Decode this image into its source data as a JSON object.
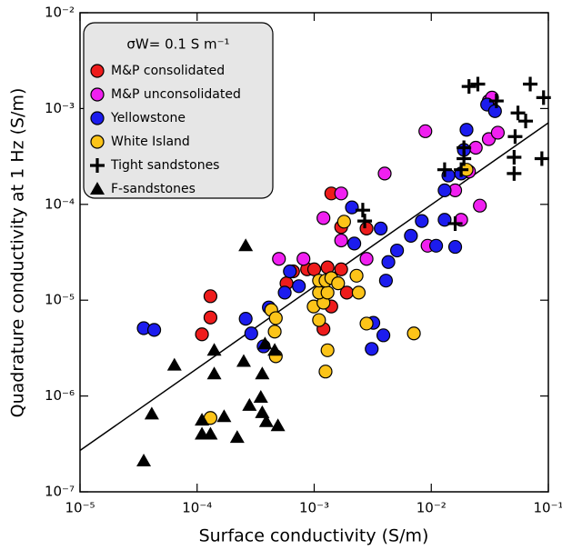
{
  "chart_data": {
    "type": "scatter",
    "xlabel": "Surface conductivity (S/m)",
    "ylabel": "Quadrature conductivity at 1 Hz (S/m)",
    "xscale": "log",
    "yscale": "log",
    "xlim": [
      1e-05,
      0.1
    ],
    "ylim": [
      1e-07,
      0.01
    ],
    "xticks": [
      {
        "value": 1e-05,
        "label": "10⁻⁵"
      },
      {
        "value": 0.0001,
        "label": "10⁻⁴"
      },
      {
        "value": 0.001,
        "label": "10⁻³"
      },
      {
        "value": 0.01,
        "label": "10⁻²"
      },
      {
        "value": 0.1,
        "label": "10⁻¹"
      }
    ],
    "yticks": [
      {
        "value": 1e-07,
        "label": "10⁻⁷"
      },
      {
        "value": 1e-06,
        "label": "10⁻⁶"
      },
      {
        "value": 1e-05,
        "label": "10⁻⁵"
      },
      {
        "value": 0.0001,
        "label": "10⁻⁴"
      },
      {
        "value": 0.001,
        "label": "10⁻³"
      },
      {
        "value": 0.01,
        "label": "10⁻²"
      }
    ],
    "legend_title": "σW= 0.1 S m⁻¹",
    "legend_position": "upper left",
    "fit_line": {
      "color": "#000000",
      "x": [
        1e-05,
        0.1
      ],
      "y": [
        2.7e-07,
        0.00071
      ]
    },
    "series": [
      {
        "name": "M&P consolidated",
        "color": "#ee1c1c",
        "marker": "circle",
        "x": [
          0.00013,
          0.00013,
          0.00011,
          0.00066,
          0.00058,
          0.00087,
          0.001,
          0.0013,
          0.0017,
          0.0014,
          0.0017,
          0.0019,
          0.0014,
          0.0012,
          0.0028
        ],
        "values": [
          1.1e-05,
          6.6e-06,
          4.4e-06,
          2e-05,
          1.5e-05,
          2.1e-05,
          2.1e-05,
          2.2e-05,
          2.1e-05,
          0.00013,
          5.8e-05,
          1.2e-05,
          8.6e-06,
          5e-06,
          5.6e-05
        ]
      },
      {
        "name": "M&P unconsolidated",
        "color": "#f020f0",
        "marker": "circle",
        "x": [
          0.0005,
          0.00081,
          0.0012,
          0.0017,
          0.0017,
          0.0028,
          0.004,
          0.0089,
          0.0093,
          0.016,
          0.018,
          0.026,
          0.021,
          0.024,
          0.031,
          0.037,
          0.031,
          0.033
        ],
        "values": [
          2.7e-05,
          2.7e-05,
          7.2e-05,
          0.00013,
          4.2e-05,
          2.7e-05,
          0.00021,
          0.00058,
          3.7e-05,
          0.00014,
          6.9e-05,
          9.7e-05,
          0.00022,
          0.00039,
          0.00048,
          0.00056,
          0.0012,
          0.0013
        ]
      },
      {
        "name": "Yellowstone",
        "color": "#1c1cee",
        "marker": "circle",
        "x": [
          3.5e-05,
          4.3e-05,
          0.00026,
          0.00029,
          0.00037,
          0.00041,
          0.00056,
          0.00062,
          0.00074,
          0.0021,
          0.0022,
          0.0031,
          0.0032,
          0.0039,
          0.0041,
          0.0037,
          0.0043,
          0.0051,
          0.0067,
          0.0083,
          0.011,
          0.013,
          0.013,
          0.014,
          0.016,
          0.018,
          0.019,
          0.02,
          0.03,
          0.035
        ],
        "values": [
          5.1e-06,
          4.9e-06,
          6.4e-06,
          4.5e-06,
          3.3e-06,
          8.4e-06,
          1.2e-05,
          2e-05,
          1.4e-05,
          9.3e-05,
          3.9e-05,
          3.1e-06,
          5.8e-06,
          4.3e-06,
          1.6e-05,
          5.6e-05,
          2.5e-05,
          3.3e-05,
          4.7e-05,
          6.7e-05,
          3.7e-05,
          6.9e-05,
          0.00014,
          0.0002,
          3.6e-05,
          0.00021,
          0.00037,
          0.0006,
          0.0011,
          0.00094
        ]
      },
      {
        "name": "White Island",
        "color": "#fcc419",
        "marker": "circle",
        "x": [
          0.00013,
          0.00043,
          0.00047,
          0.00046,
          0.0011,
          0.00099,
          0.0012,
          0.0011,
          0.0011,
          0.0013,
          0.00125,
          0.0014,
          0.0016,
          0.0018,
          0.0023,
          0.0024,
          0.0028,
          0.0013,
          0.00125,
          0.0071,
          0.02,
          0.00047
        ],
        "values": [
          5.9e-07,
          7.9e-06,
          6.5e-06,
          4.7e-06,
          6.2e-06,
          8.6e-06,
          9.4e-06,
          1.2e-05,
          1.6e-05,
          1.2e-05,
          1.6e-05,
          1.7e-05,
          1.5e-05,
          6.6e-05,
          1.8e-05,
          1.2e-05,
          5.7e-06,
          3e-06,
          1.8e-06,
          4.5e-06,
          0.00023,
          2.6e-06
        ]
      },
      {
        "name": "Tight sandstones",
        "color": "#000000",
        "marker": "plus",
        "x": [
          0.0026,
          0.0027,
          0.013,
          0.018,
          0.019,
          0.016,
          0.021,
          0.025,
          0.019,
          0.036,
          0.055,
          0.052,
          0.064,
          0.051,
          0.051,
          0.07,
          0.091,
          0.088
        ],
        "values": [
          8.7e-05,
          6.7e-05,
          0.00023,
          0.00023,
          0.00039,
          6.3e-05,
          0.0017,
          0.0018,
          0.0003,
          0.0012,
          0.0009,
          0.00051,
          0.00074,
          0.00031,
          0.00021,
          0.0018,
          0.0013,
          0.0003
        ]
      },
      {
        "name": "F-sandstones",
        "color": "#000000",
        "marker": "triangle",
        "x": [
          3.5e-05,
          6.4e-05,
          4.1e-05,
          0.00011,
          0.00013,
          0.00017,
          0.00011,
          0.00014,
          0.00014,
          0.00022,
          0.00025,
          0.00026,
          0.00028,
          0.00035,
          0.00038,
          0.00036,
          0.00036,
          0.00039,
          0.00049,
          0.00046
        ],
        "values": [
          2.1e-07,
          2.1e-06,
          6.5e-07,
          4e-07,
          4e-07,
          6.1e-07,
          5.6e-07,
          1.7e-06,
          3e-06,
          3.7e-07,
          2.3e-06,
          3.7e-05,
          8e-07,
          9.7e-07,
          3.5e-06,
          1.7e-06,
          6.7e-07,
          5.4e-07,
          4.9e-07,
          3e-06
        ]
      }
    ]
  }
}
